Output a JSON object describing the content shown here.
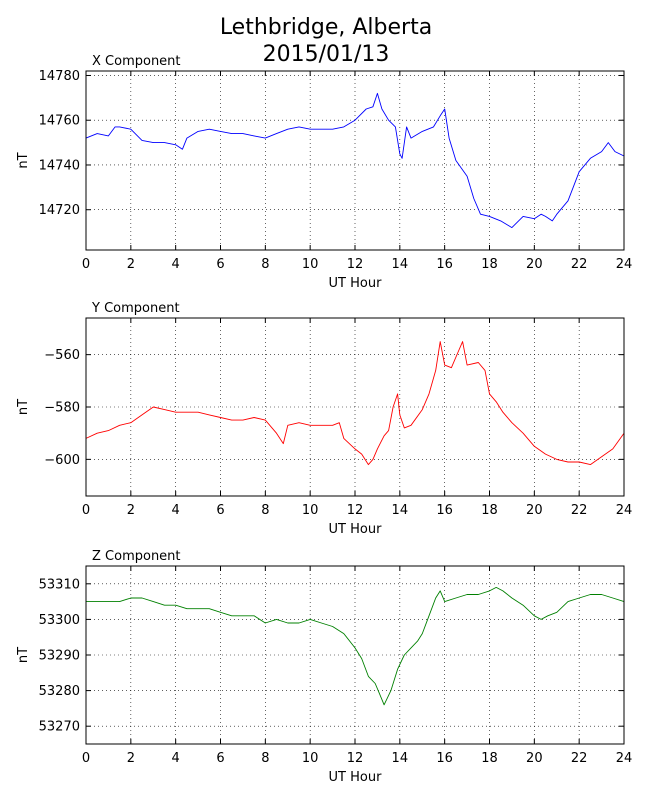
{
  "figure": {
    "title_line1": "Lethbridge, Alberta",
    "title_line2": "2015/01/13"
  },
  "chart_data": [
    {
      "type": "line",
      "title": "X Component",
      "xlabel": "UT Hour",
      "ylabel": "nT",
      "xlim": [
        0,
        24
      ],
      "ylim": [
        14702,
        14782
      ],
      "xticks": [
        0,
        2,
        4,
        6,
        8,
        10,
        12,
        14,
        16,
        18,
        20,
        22,
        24
      ],
      "yticks": [
        14720,
        14740,
        14760,
        14780
      ],
      "grid": true,
      "color": "#0000ff",
      "series": [
        {
          "x": [
            0,
            0.5,
            1,
            1.3,
            1.5,
            2,
            2.5,
            3,
            3.5,
            4,
            4.3,
            4.5,
            5,
            5.5,
            6,
            6.5,
            7,
            7.5,
            8,
            8.5,
            9,
            9.5,
            10,
            10.5,
            11,
            11.5,
            12,
            12.5,
            12.8,
            13,
            13.2,
            13.5,
            13.8,
            14,
            14.1,
            14.3,
            14.5,
            15,
            15.5,
            15.8,
            16,
            16.2,
            16.5,
            17,
            17.3,
            17.6,
            18,
            18.5,
            19,
            19.5,
            20,
            20.3,
            20.5,
            20.8,
            21,
            21.5,
            22,
            22.5,
            23,
            23.3,
            23.6,
            24
          ],
          "y": [
            14752,
            14754,
            14753,
            14757,
            14757,
            14756,
            14751,
            14750,
            14750,
            14749,
            14747,
            14752,
            14755,
            14756,
            14755,
            14754,
            14754,
            14753,
            14752,
            14754,
            14756,
            14757,
            14756,
            14756,
            14756,
            14757,
            14760,
            14765,
            14766,
            14772,
            14765,
            14760,
            14757,
            14745,
            14743,
            14757,
            14752,
            14755,
            14757,
            14762,
            14765,
            14752,
            14742,
            14735,
            14725,
            14718,
            14717,
            14715,
            14712,
            14717,
            14716,
            14718,
            14717,
            14715,
            14718,
            14724,
            14737,
            14743,
            14746,
            14750,
            14746,
            14744
          ]
        }
      ]
    },
    {
      "type": "line",
      "title": "Y Component",
      "xlabel": "UT Hour",
      "ylabel": "nT",
      "xlim": [
        0,
        24
      ],
      "ylim": [
        -614,
        -546
      ],
      "xticks": [
        0,
        2,
        4,
        6,
        8,
        10,
        12,
        14,
        16,
        18,
        20,
        22,
        24
      ],
      "yticks": [
        -560,
        -580,
        -600
      ],
      "grid": true,
      "color": "#ff0000",
      "series": [
        {
          "x": [
            0,
            0.5,
            1,
            1.5,
            2,
            2.5,
            3,
            3.5,
            4,
            4.5,
            5,
            5.5,
            6,
            6.5,
            7,
            7.5,
            8,
            8.5,
            8.8,
            9,
            9.5,
            10,
            10.5,
            11,
            11.3,
            11.5,
            12,
            12.3,
            12.6,
            12.8,
            13,
            13.3,
            13.5,
            13.7,
            13.9,
            14,
            14.2,
            14.5,
            15,
            15.3,
            15.6,
            15.8,
            16,
            16.3,
            16.6,
            16.8,
            17,
            17.5,
            17.8,
            18,
            18.3,
            18.6,
            19,
            19.5,
            20,
            20.5,
            21,
            21.5,
            22,
            22.5,
            23,
            23.5,
            24
          ],
          "y": [
            -592,
            -590,
            -589,
            -587,
            -586,
            -583,
            -580,
            -581,
            -582,
            -582,
            -582,
            -583,
            -584,
            -585,
            -585,
            -584,
            -585,
            -590,
            -594,
            -587,
            -586,
            -587,
            -587,
            -587,
            -586,
            -592,
            -596,
            -598,
            -602,
            -600,
            -596,
            -591,
            -589,
            -580,
            -575,
            -583,
            -588,
            -587,
            -581,
            -575,
            -566,
            -555,
            -564,
            -565,
            -559,
            -555,
            -564,
            -563,
            -566,
            -575,
            -578,
            -582,
            -586,
            -590,
            -595,
            -598,
            -600,
            -601,
            -601,
            -602,
            -599,
            -596,
            -590
          ]
        }
      ]
    },
    {
      "type": "line",
      "title": "Z Component",
      "xlabel": "UT Hour",
      "ylabel": "nT",
      "xlim": [
        0,
        24
      ],
      "ylim": [
        53265,
        53315
      ],
      "xticks": [
        0,
        2,
        4,
        6,
        8,
        10,
        12,
        14,
        16,
        18,
        20,
        22,
        24
      ],
      "yticks": [
        53270,
        53280,
        53290,
        53300,
        53310
      ],
      "grid": true,
      "color": "#008000",
      "series": [
        {
          "x": [
            0,
            0.5,
            1,
            1.5,
            2,
            2.5,
            3,
            3.5,
            4,
            4.5,
            5,
            5.5,
            6,
            6.5,
            7,
            7.5,
            8,
            8.5,
            9,
            9.5,
            10,
            10.5,
            11,
            11.5,
            12,
            12.3,
            12.6,
            12.9,
            13.1,
            13.3,
            13.6,
            13.9,
            14.2,
            14.5,
            14.8,
            15,
            15.3,
            15.6,
            15.8,
            16,
            16.5,
            17,
            17.5,
            18,
            18.3,
            18.6,
            19,
            19.5,
            20,
            20.3,
            20.6,
            21,
            21.5,
            22,
            22.5,
            23,
            23.5,
            24
          ],
          "y": [
            53305,
            53305,
            53305,
            53305,
            53306,
            53306,
            53305,
            53304,
            53304,
            53303,
            53303,
            53303,
            53302,
            53301,
            53301,
            53301,
            53299,
            53300,
            53299,
            53299,
            53300,
            53299,
            53298,
            53296,
            53292,
            53289,
            53284,
            53282,
            53279,
            53276,
            53280,
            53286,
            53290,
            53292,
            53294,
            53296,
            53301,
            53306,
            53308,
            53305,
            53306,
            53307,
            53307,
            53308,
            53309,
            53308,
            53306,
            53304,
            53301,
            53300,
            53301,
            53302,
            53305,
            53306,
            53307,
            53307,
            53306,
            53305
          ]
        }
      ]
    }
  ]
}
